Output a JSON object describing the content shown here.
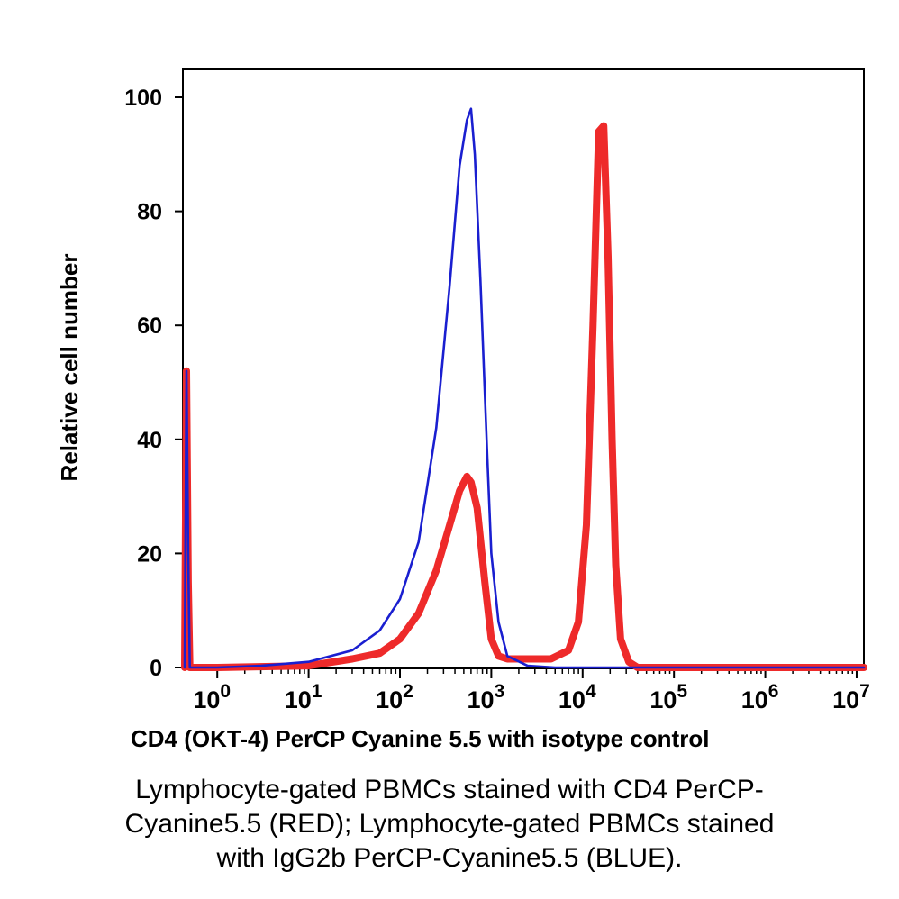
{
  "chart_data": {
    "type": "line",
    "xlabel": "CD4 (OKT-4) PerCP Cyanine 5.5 with isotype control",
    "ylabel": "Relative cell number",
    "xscale": "log",
    "xlim": [
      0.42,
      12000000
    ],
    "ylim": [
      0,
      100
    ],
    "grid": false,
    "y_ticks": [
      "0",
      "20",
      "40",
      "60",
      "80",
      "100"
    ],
    "x_ticks": [
      {
        "base": "10",
        "exp": "0"
      },
      {
        "base": "10",
        "exp": "1"
      },
      {
        "base": "10",
        "exp": "2"
      },
      {
        "base": "10",
        "exp": "3"
      },
      {
        "base": "10",
        "exp": "4"
      },
      {
        "base": "10",
        "exp": "5"
      },
      {
        "base": "10",
        "exp": "6"
      },
      {
        "base": "10",
        "exp": "7"
      }
    ],
    "series": [
      {
        "color": "#1a1fd0",
        "x": [
          0.44,
          0.46,
          0.48,
          0.5,
          0.55,
          1,
          3,
          10,
          30,
          60,
          100,
          160,
          250,
          350,
          450,
          540,
          600,
          660,
          760,
          900,
          1000,
          1200,
          1500,
          2500,
          5000,
          9000,
          12000000
        ],
        "y": [
          0,
          52,
          20,
          0,
          0,
          0,
          0.3,
          1,
          3,
          6.5,
          12,
          22,
          42,
          67,
          88,
          96,
          98,
          90,
          68,
          38,
          20,
          8,
          2,
          0.3,
          0,
          0,
          0
        ]
      },
      {
        "color": "#ee2a2a",
        "x": [
          0.44,
          0.46,
          0.48,
          0.5,
          0.55,
          1,
          10,
          30,
          60,
          100,
          160,
          250,
          350,
          450,
          540,
          600,
          700,
          850,
          1000,
          1200,
          1500,
          2500,
          4500,
          7000,
          9000,
          11000,
          13000,
          15000,
          17000,
          19000,
          21000,
          23000,
          26000,
          32000,
          40000,
          12000000
        ],
        "y": [
          0,
          52,
          15,
          0,
          0,
          0,
          0.3,
          1.5,
          2.5,
          5,
          9.5,
          17,
          25,
          31,
          33.5,
          32.5,
          28,
          15,
          5,
          2,
          1.5,
          1.5,
          1.5,
          3,
          8,
          25,
          60,
          94,
          95,
          72,
          40,
          18,
          5,
          1,
          0,
          0
        ]
      }
    ]
  },
  "caption": {
    "line1": "Lymphocyte-gated PBMCs stained with CD4 PerCP-",
    "line2": "Cyanine5.5 (RED); Lymphocyte-gated PBMCs stained",
    "line3": "with IgG2b PerCP-Cyanine5.5 (BLUE)."
  }
}
